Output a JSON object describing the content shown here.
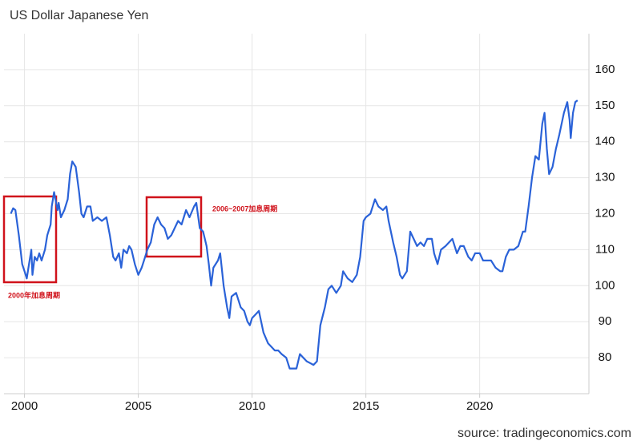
{
  "chart_data": {
    "type": "line",
    "title": "US Dollar Japanese Yen",
    "source": "source: tradingeconomics.com",
    "annotations": [
      "2000年加息周期",
      "2006~2007加息周期"
    ],
    "xlim": [
      1999.1,
      2024.8
    ],
    "xticks": [
      2000,
      2005,
      2010,
      2015,
      2020
    ],
    "ylim": [
      70,
      170
    ],
    "yticks": [
      80,
      90,
      100,
      110,
      120,
      130,
      140,
      150,
      160
    ],
    "grid": true,
    "series": [
      {
        "name": "USDJPY",
        "color": "#2a62d8",
        "x": [
          1999.4,
          1999.5,
          1999.6,
          1999.75,
          1999.9,
          2000.0,
          2000.1,
          2000.2,
          2000.3,
          2000.35,
          2000.45,
          2000.55,
          2000.65,
          2000.75,
          2000.9,
          2001.0,
          2001.15,
          2001.2,
          2001.3,
          2001.45,
          2001.5,
          2001.6,
          2001.75,
          2001.9,
          2002.0,
          2002.1,
          2002.25,
          2002.4,
          2002.5,
          2002.6,
          2002.75,
          2002.9,
          2003.0,
          2003.2,
          2003.4,
          2003.6,
          2003.75,
          2003.9,
          2004.0,
          2004.15,
          2004.25,
          2004.35,
          2004.5,
          2004.6,
          2004.7,
          2004.85,
          2005.0,
          2005.15,
          2005.25,
          2005.4,
          2005.55,
          2005.7,
          2005.85,
          2006.0,
          2006.15,
          2006.3,
          2006.45,
          2006.6,
          2006.75,
          2006.9,
          2007.1,
          2007.25,
          2007.45,
          2007.55,
          2007.7,
          2007.85,
          2008.0,
          2008.1,
          2008.2,
          2008.3,
          2008.5,
          2008.6,
          2008.75,
          2008.9,
          2009.0,
          2009.1,
          2009.3,
          2009.5,
          2009.65,
          2009.8,
          2009.9,
          2010.0,
          2010.15,
          2010.3,
          2010.5,
          2010.7,
          2010.85,
          2011.0,
          2011.15,
          2011.3,
          2011.5,
          2011.65,
          2011.8,
          2011.95,
          2012.1,
          2012.25,
          2012.4,
          2012.55,
          2012.7,
          2012.85,
          2013.0,
          2013.2,
          2013.35,
          2013.5,
          2013.7,
          2013.9,
          2014.0,
          2014.2,
          2014.4,
          2014.6,
          2014.75,
          2014.9,
          2015.0,
          2015.2,
          2015.4,
          2015.55,
          2015.75,
          2015.9,
          2016.0,
          2016.2,
          2016.35,
          2016.5,
          2016.6,
          2016.8,
          2016.95,
          2017.1,
          2017.25,
          2017.4,
          2017.55,
          2017.7,
          2017.9,
          2018.0,
          2018.15,
          2018.3,
          2018.5,
          2018.65,
          2018.8,
          2019.0,
          2019.15,
          2019.3,
          2019.5,
          2019.65,
          2019.8,
          2020.0,
          2020.15,
          2020.3,
          2020.5,
          2020.7,
          2020.9,
          2021.0,
          2021.15,
          2021.3,
          2021.5,
          2021.7,
          2021.9,
          2022.0,
          2022.15,
          2022.3,
          2022.45,
          2022.6,
          2022.75,
          2022.85,
          2022.95,
          2023.05,
          2023.2,
          2023.35,
          2023.5,
          2023.7,
          2023.85,
          2023.95,
          2024.0,
          2024.1,
          2024.2,
          2024.3
        ],
        "values": [
          120,
          121.5,
          121,
          114,
          106,
          104,
          102,
          106,
          110,
          103,
          108,
          107,
          109,
          107,
          110,
          114,
          117,
          122,
          126,
          121,
          123,
          119,
          121,
          124,
          131,
          134.5,
          133,
          126,
          120,
          119,
          122,
          122,
          118,
          119,
          118,
          119,
          114,
          108,
          107,
          109,
          105,
          110,
          109,
          111,
          110,
          106,
          103,
          105,
          107,
          110,
          112,
          117,
          119,
          117,
          116,
          113,
          114,
          116,
          118,
          117,
          121,
          119,
          122,
          123,
          116,
          115,
          111,
          106,
          100,
          105,
          107,
          109,
          100,
          94,
          91,
          97,
          98,
          94,
          93,
          90,
          89,
          91,
          92,
          93,
          87,
          84,
          83,
          82,
          82,
          81,
          80,
          77,
          77,
          77,
          81,
          80,
          79,
          78.5,
          78,
          79,
          89,
          94,
          99,
          100,
          98,
          100,
          104,
          102,
          101,
          103,
          108,
          118,
          119,
          120,
          124,
          122,
          121,
          122,
          118,
          112,
          108,
          103,
          102,
          104,
          115,
          113,
          111,
          112,
          111,
          113,
          113,
          109,
          106,
          110,
          111,
          112,
          113,
          109,
          111,
          111,
          108,
          107,
          109,
          109,
          107,
          107,
          107,
          105,
          104,
          104,
          108,
          110,
          110,
          111,
          115,
          115,
          122,
          130,
          136,
          135,
          145,
          148,
          138,
          131,
          133,
          138,
          142,
          148,
          151,
          146,
          141,
          148,
          151,
          151.5
        ]
      }
    ]
  }
}
